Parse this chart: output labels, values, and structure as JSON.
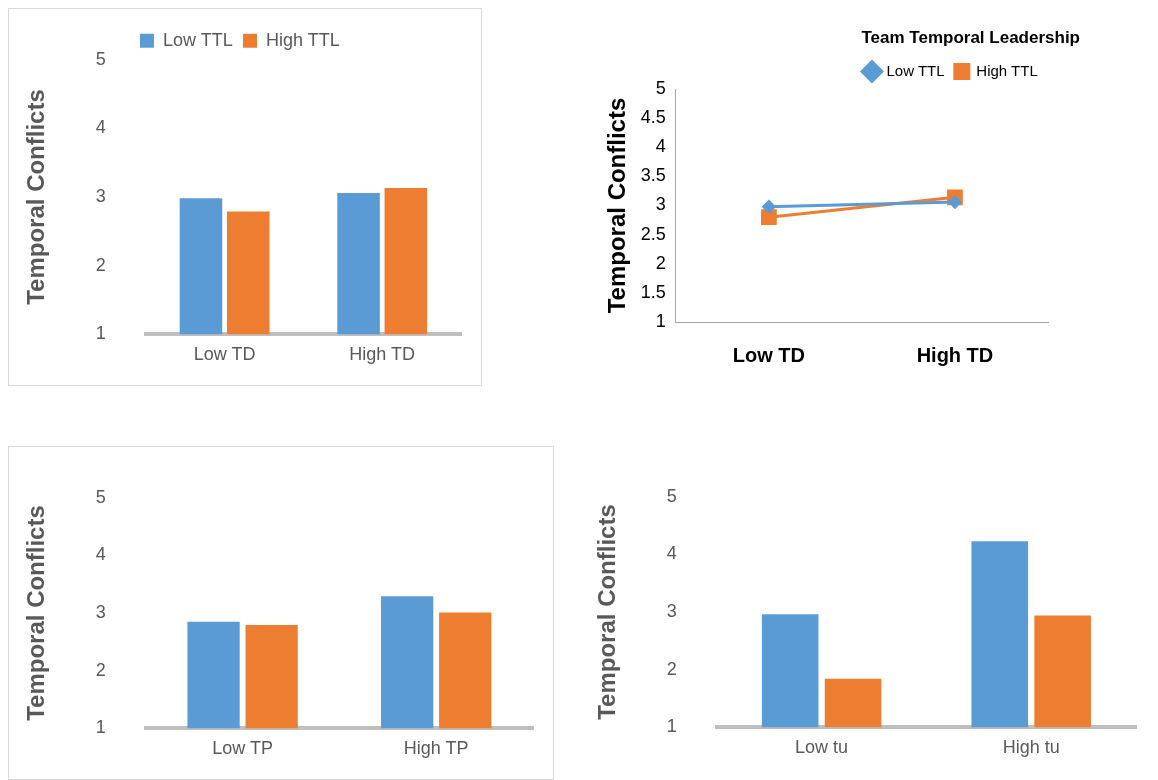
{
  "chart_data": [
    {
      "type": "bar",
      "ylabel": "Temporal Conflicts",
      "categories": [
        "Low TD",
        "High TD"
      ],
      "ylim": [
        1,
        5
      ],
      "yticks": [
        1,
        2,
        3,
        4,
        5
      ],
      "grid": false,
      "legend": "top",
      "series": [
        {
          "name": "Low TTL",
          "color": "#5b9bd5",
          "values": [
            2.98,
            3.06
          ]
        },
        {
          "name": "High TTL",
          "color": "#ed7d31",
          "values": [
            2.79,
            3.13
          ]
        }
      ]
    },
    {
      "type": "line",
      "ylabel": "Temporal Conflicts",
      "legend_title": "Team Temporal Leadership",
      "categories": [
        "Low TD",
        "High TD"
      ],
      "ylim": [
        1,
        5
      ],
      "yticks": [
        1,
        1.5,
        2,
        2.5,
        3,
        3.5,
        4,
        4.5,
        5
      ],
      "grid": false,
      "legend": "top right",
      "series": [
        {
          "name": "Low TTL",
          "color": "#5b9bd5",
          "marker": "diamond",
          "values": [
            2.98,
            3.06
          ]
        },
        {
          "name": "High TTL",
          "color": "#ed7d31",
          "marker": "square",
          "values": [
            2.8,
            3.14
          ]
        }
      ]
    },
    {
      "type": "bar",
      "ylabel": "Temporal Conflicts",
      "categories": [
        "Low TP",
        "High TP"
      ],
      "ylim": [
        1,
        5
      ],
      "yticks": [
        1,
        2,
        3,
        4,
        5
      ],
      "grid": false,
      "series": [
        {
          "color": "#5b9bd5",
          "values": [
            2.85,
            3.29
          ]
        },
        {
          "color": "#ed7d31",
          "values": [
            2.79,
            3.01
          ]
        }
      ]
    },
    {
      "type": "bar",
      "ylabel": "Temporal Conflicts",
      "categories": [
        "Low tu",
        "High tu"
      ],
      "ylim": [
        1,
        5
      ],
      "yticks": [
        1,
        2,
        3,
        4,
        5
      ],
      "grid": false,
      "series": [
        {
          "color": "#5b9bd5",
          "values": [
            2.96,
            4.23
          ]
        },
        {
          "color": "#ed7d31",
          "values": [
            1.84,
            2.94
          ]
        }
      ]
    }
  ]
}
